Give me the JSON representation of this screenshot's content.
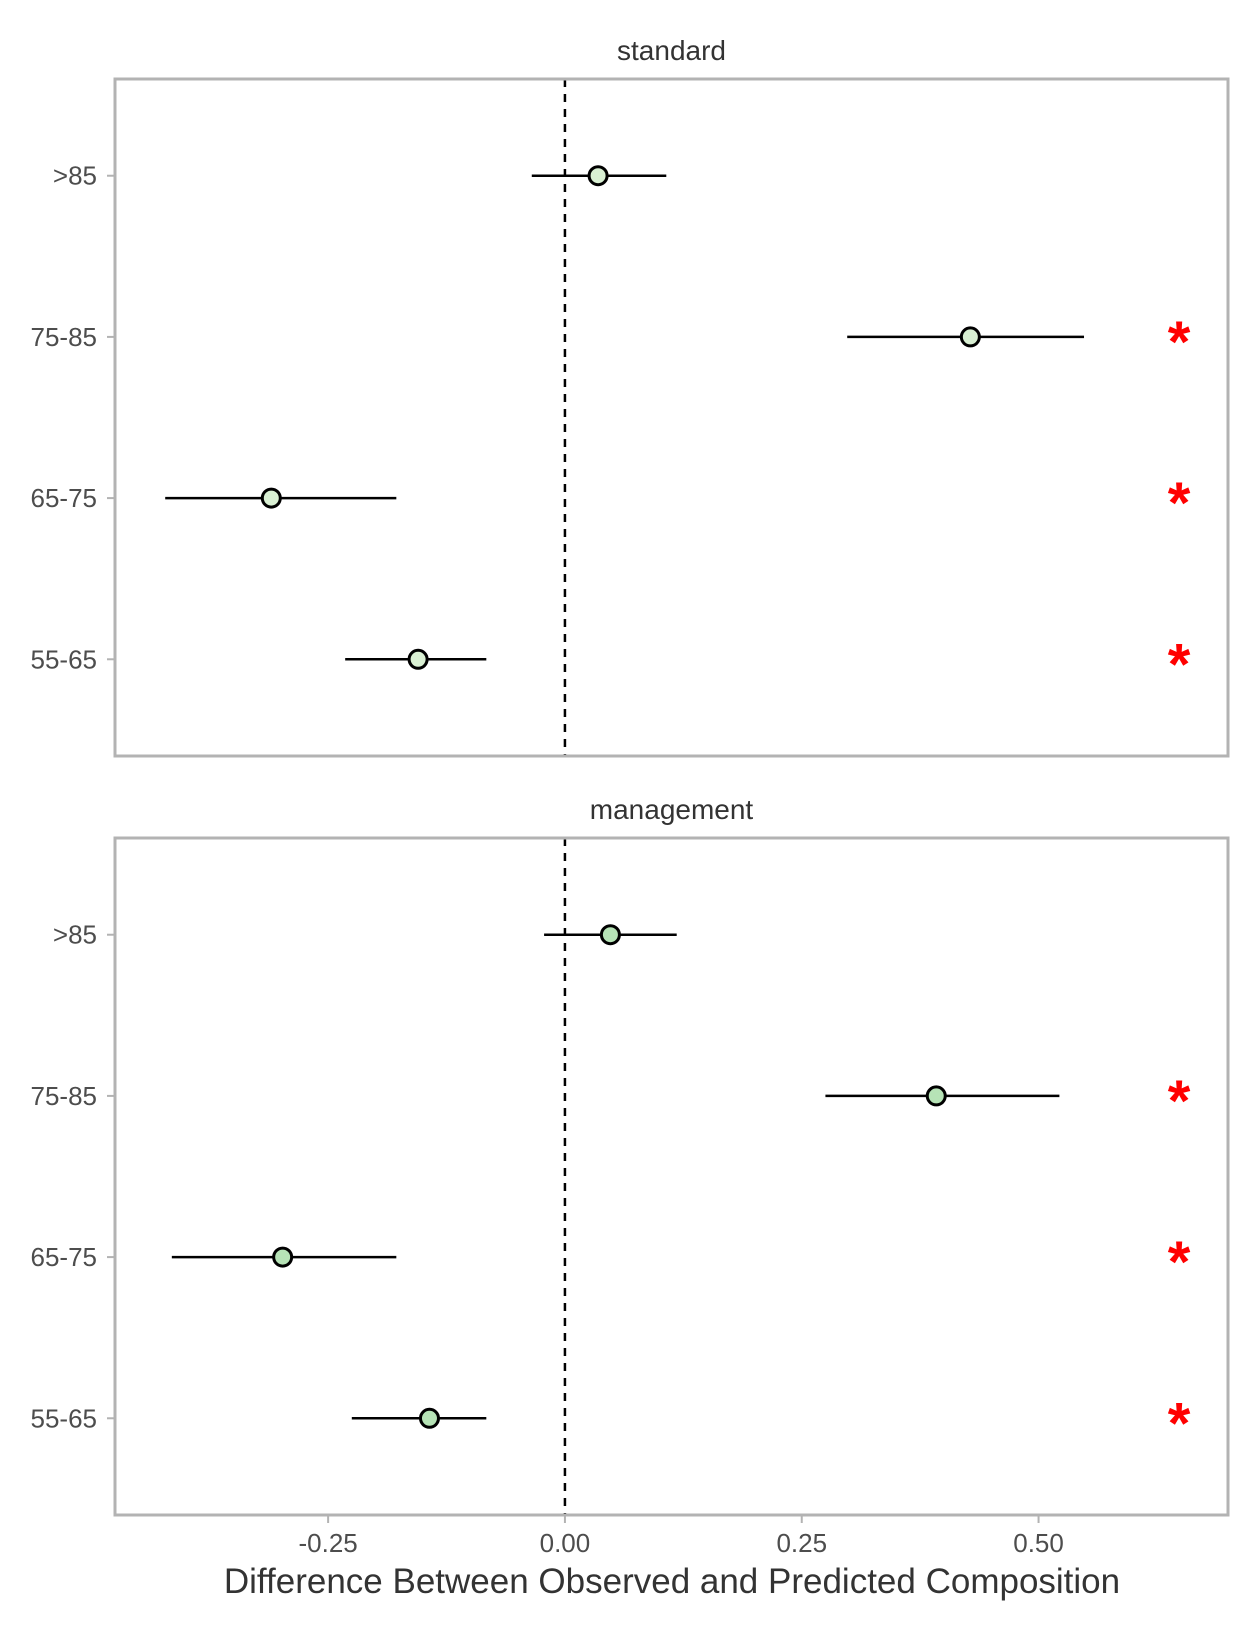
{
  "chart_data": {
    "type": "dot-whisker",
    "xlabel": "Difference Between Observed and Predicted Composition",
    "xlim": [
      -0.475,
      0.7
    ],
    "x_ticks": [
      -0.25,
      0.0,
      0.25,
      0.5
    ],
    "x_tick_labels": [
      "-0.25",
      "0.00",
      "0.25",
      "0.50"
    ],
    "reference_line": 0,
    "categories": [
      ">85",
      "75-85",
      "65-75",
      "55-65"
    ],
    "significance_marker": "*",
    "significance_color": "#ff0000",
    "facets": [
      {
        "title": "standard",
        "point_color": "#d9f0d3",
        "points": [
          {
            "category": ">85",
            "value": 0.035,
            "lower": -0.035,
            "upper": 0.107,
            "significant": false
          },
          {
            "category": "75-85",
            "value": 0.428,
            "lower": 0.298,
            "upper": 0.548,
            "significant": true
          },
          {
            "category": "65-75",
            "value": -0.31,
            "lower": -0.422,
            "upper": -0.178,
            "significant": true
          },
          {
            "category": "55-65",
            "value": -0.155,
            "lower": -0.232,
            "upper": -0.083,
            "significant": true
          }
        ]
      },
      {
        "title": "management",
        "point_color": "#b6e3b6",
        "points": [
          {
            "category": ">85",
            "value": 0.048,
            "lower": -0.022,
            "upper": 0.118,
            "significant": false
          },
          {
            "category": "75-85",
            "value": 0.392,
            "lower": 0.275,
            "upper": 0.522,
            "significant": true
          },
          {
            "category": "65-75",
            "value": -0.298,
            "lower": -0.415,
            "upper": -0.178,
            "significant": true
          },
          {
            "category": "55-65",
            "value": -0.143,
            "lower": -0.225,
            "upper": -0.083,
            "significant": true
          }
        ]
      }
    ]
  }
}
